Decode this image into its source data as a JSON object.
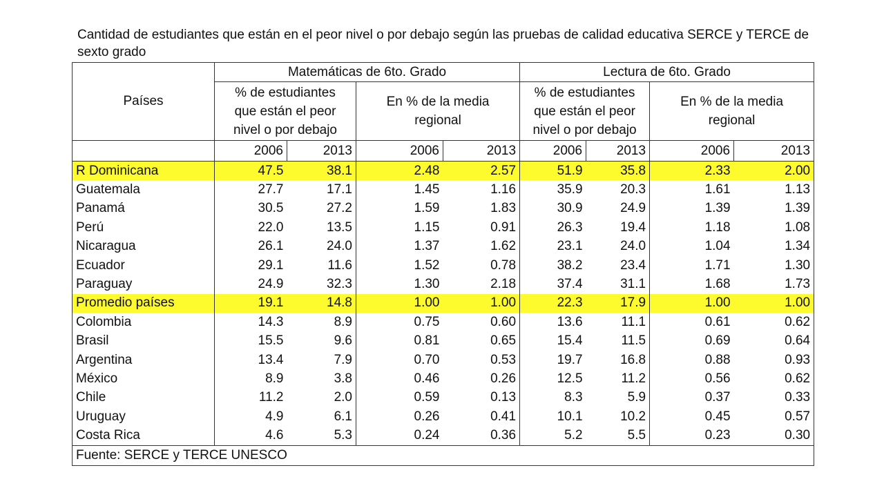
{
  "title": "Cantidad de estudiantes que están en el peor nivel o por debajo según las pruebas de calidad educativa SERCE y TERCE  de sexto grado",
  "headers": {
    "paises": "Países",
    "matematicas": "Matemáticas de 6to. Grado",
    "lectura": "Lectura de 6to. Grado",
    "pct_line1": "% de estudiantes",
    "pct_line2": "que están el peor",
    "pct_line3": "nivel o por debajo",
    "media_line1": "En % de la media",
    "media_line2": "regional",
    "years": [
      "2006",
      "2013",
      "2006",
      "2013",
      "2006",
      "2013",
      "2006",
      "2013"
    ]
  },
  "rows": [
    {
      "country": "R Dominicana",
      "highlight": true,
      "values": [
        "47.5",
        "38.1",
        "2.48",
        "2.57",
        "51.9",
        "35.8",
        "2.33",
        "2.00"
      ]
    },
    {
      "country": "Guatemala",
      "highlight": false,
      "values": [
        "27.7",
        "17.1",
        "1.45",
        "1.16",
        "35.9",
        "20.3",
        "1.61",
        "1.13"
      ]
    },
    {
      "country": "Panamá",
      "highlight": false,
      "values": [
        "30.5",
        "27.2",
        "1.59",
        "1.83",
        "30.9",
        "24.9",
        "1.39",
        "1.39"
      ]
    },
    {
      "country": "Perú",
      "highlight": false,
      "values": [
        "22.0",
        "13.5",
        "1.15",
        "0.91",
        "26.3",
        "19.4",
        "1.18",
        "1.08"
      ]
    },
    {
      "country": "Nicaragua",
      "highlight": false,
      "values": [
        "26.1",
        "24.0",
        "1.37",
        "1.62",
        "23.1",
        "24.0",
        "1.04",
        "1.34"
      ]
    },
    {
      "country": "Ecuador",
      "highlight": false,
      "values": [
        "29.1",
        "11.6",
        "1.52",
        "0.78",
        "38.2",
        "23.4",
        "1.71",
        "1.30"
      ]
    },
    {
      "country": "Paraguay",
      "highlight": false,
      "values": [
        "24.9",
        "32.3",
        "1.30",
        "2.18",
        "37.4",
        "31.1",
        "1.68",
        "1.73"
      ]
    },
    {
      "country": "Promedio países",
      "highlight": true,
      "values": [
        "19.1",
        "14.8",
        "1.00",
        "1.00",
        "22.3",
        "17.9",
        "1.00",
        "1.00"
      ]
    },
    {
      "country": "Colombia",
      "highlight": false,
      "values": [
        "14.3",
        "8.9",
        "0.75",
        "0.60",
        "13.6",
        "11.1",
        "0.61",
        "0.62"
      ]
    },
    {
      "country": "Brasil",
      "highlight": false,
      "values": [
        "15.5",
        "9.6",
        "0.81",
        "0.65",
        "15.4",
        "11.5",
        "0.69",
        "0.64"
      ]
    },
    {
      "country": "Argentina",
      "highlight": false,
      "values": [
        "13.4",
        "7.9",
        "0.70",
        "0.53",
        "19.7",
        "16.8",
        "0.88",
        "0.93"
      ]
    },
    {
      "country": "México",
      "highlight": false,
      "values": [
        "8.9",
        "3.8",
        "0.46",
        "0.26",
        "12.5",
        "11.2",
        "0.56",
        "0.62"
      ]
    },
    {
      "country": "Chile",
      "highlight": false,
      "values": [
        "11.2",
        "2.0",
        "0.59",
        "0.13",
        "8.3",
        "5.9",
        "0.37",
        "0.33"
      ]
    },
    {
      "country": "Uruguay",
      "highlight": false,
      "values": [
        "4.9",
        "6.1",
        "0.26",
        "0.41",
        "10.1",
        "10.2",
        "0.45",
        "0.57"
      ]
    },
    {
      "country": "Costa Rica",
      "highlight": false,
      "values": [
        "4.6",
        "5.3",
        "0.24",
        "0.36",
        "5.2",
        "5.5",
        "0.23",
        "0.30"
      ]
    }
  ],
  "footer": "Fuente: SERCE y TERCE UNESCO",
  "colors": {
    "highlight": "#fdfb2e",
    "border": "#333333"
  }
}
